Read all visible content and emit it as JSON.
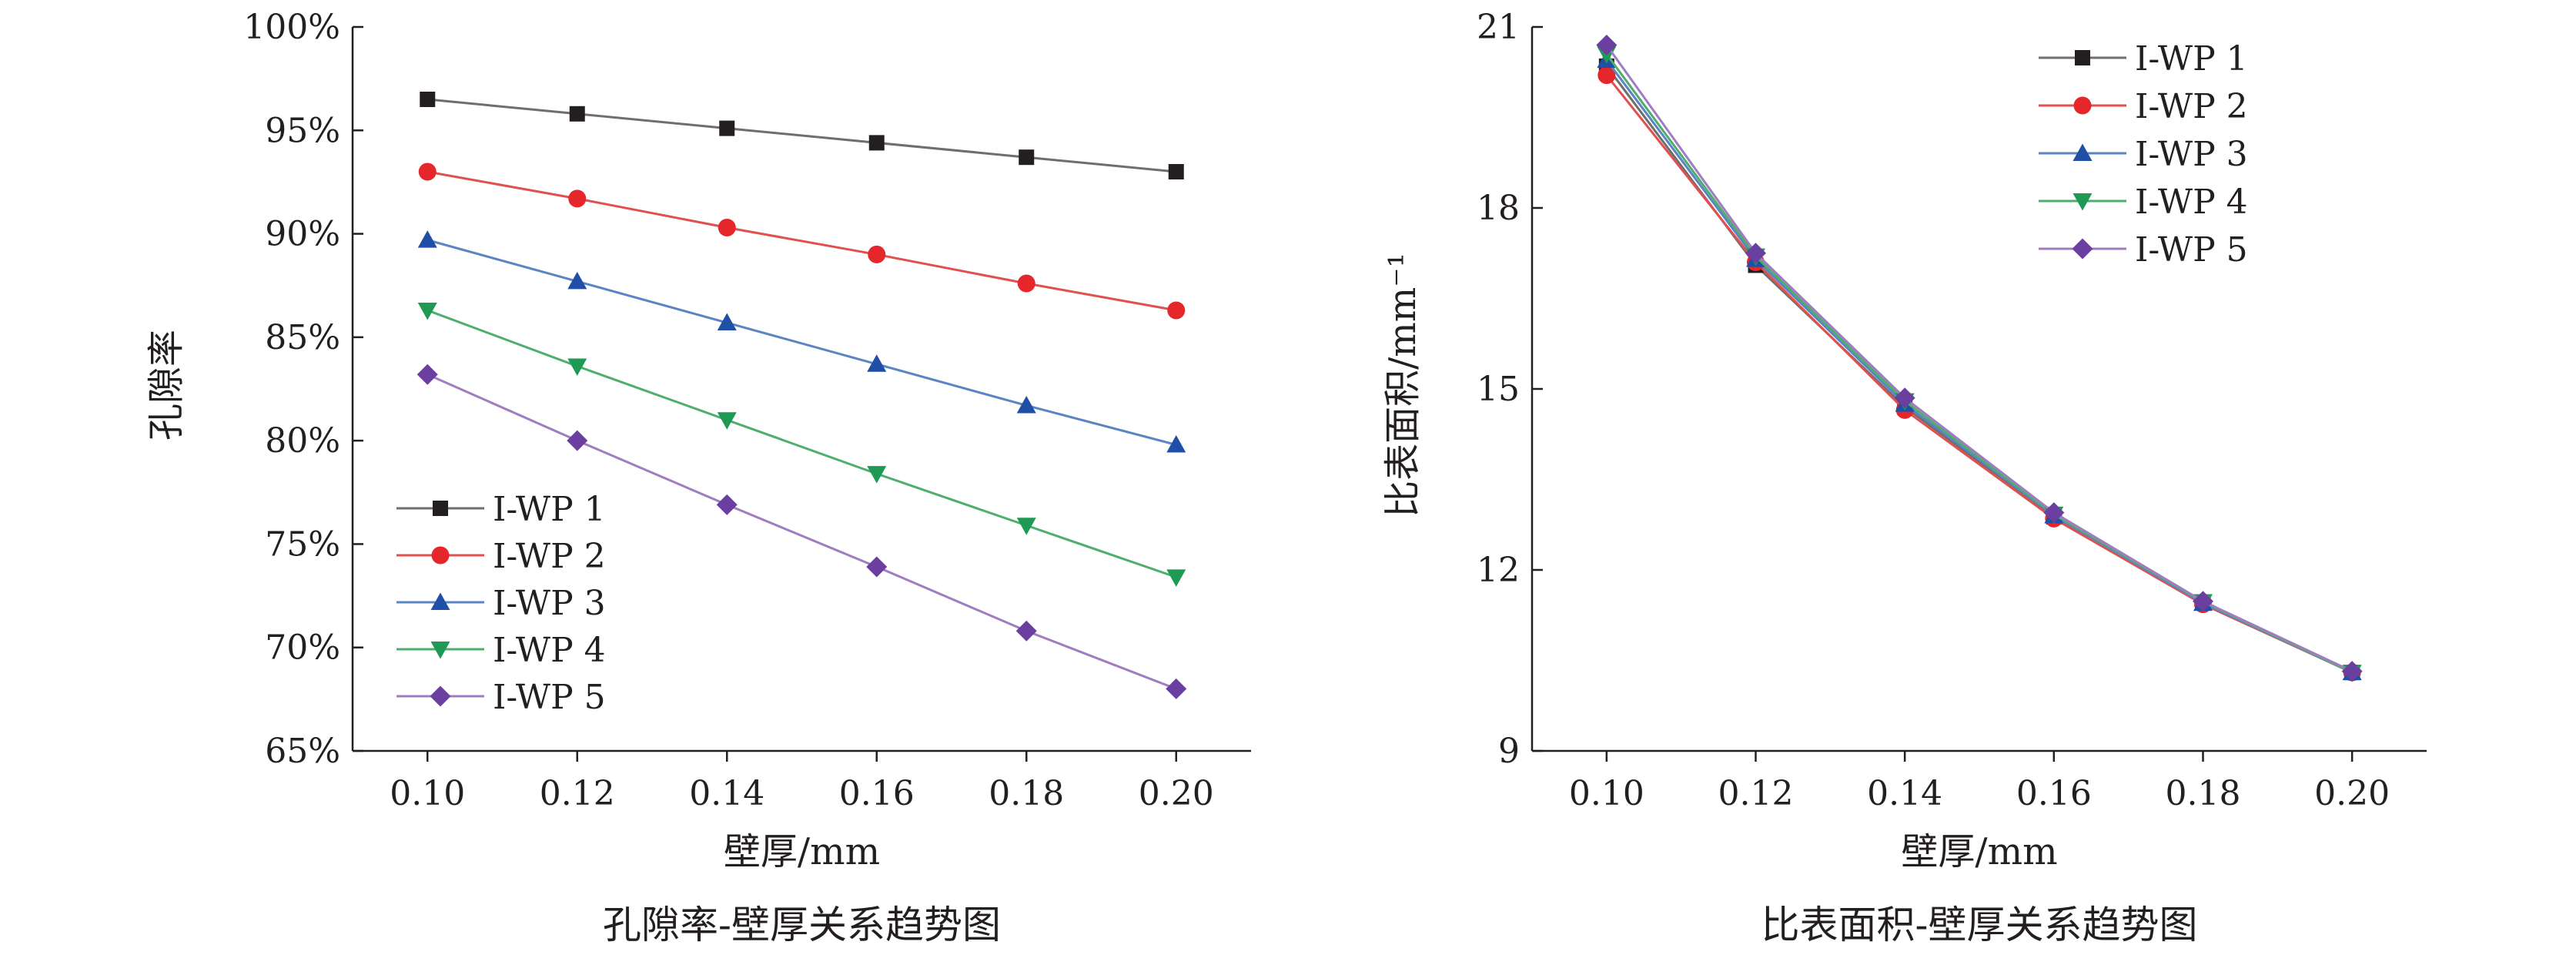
{
  "chart_data": [
    {
      "type": "line",
      "caption": "孔隙率-壁厚关系趋势图",
      "xlabel": "壁厚/mm",
      "ylabel": "孔隙率",
      "x": [
        0.1,
        0.12,
        0.14,
        0.16,
        0.18,
        0.2
      ],
      "x_ticks": [
        "0.10",
        "0.12",
        "0.14",
        "0.16",
        "0.18",
        "0.20"
      ],
      "xlim": [
        0.09,
        0.21
      ],
      "ylim": [
        65,
        100
      ],
      "y_ticks": [
        65,
        70,
        75,
        80,
        85,
        90,
        95,
        100
      ],
      "y_tick_labels": [
        "65%",
        "70%",
        "75%",
        "80%",
        "85%",
        "90%",
        "95%",
        "100%"
      ],
      "grid": false,
      "legend_position": "bottom-left",
      "series": [
        {
          "name": "I-WP 1",
          "color": "#6e6e6e",
          "marker_color": "#231f20",
          "marker": "square",
          "values": [
            96.5,
            95.8,
            95.1,
            94.4,
            93.7,
            93.0
          ]
        },
        {
          "name": "I-WP 2",
          "color": "#e0504f",
          "marker_color": "#e5262a",
          "marker": "circle",
          "values": [
            93.0,
            91.7,
            90.3,
            89.0,
            87.6,
            86.3
          ]
        },
        {
          "name": "I-WP 3",
          "color": "#5b84c4",
          "marker_color": "#1f4fa6",
          "marker": "triangle-up",
          "values": [
            89.7,
            87.7,
            85.7,
            83.7,
            81.7,
            79.8
          ]
        },
        {
          "name": "I-WP 4",
          "color": "#4fae6e",
          "marker_color": "#1f9a55",
          "marker": "triangle-down",
          "values": [
            86.3,
            83.6,
            81.0,
            78.4,
            75.9,
            73.4
          ]
        },
        {
          "name": "I-WP 5",
          "color": "#a07cc0",
          "marker_color": "#6a3fa0",
          "marker": "diamond",
          "values": [
            83.2,
            80.0,
            76.9,
            73.9,
            70.8,
            68.0
          ]
        }
      ]
    },
    {
      "type": "line",
      "caption": "比表面积-壁厚关系趋势图",
      "xlabel": "壁厚/mm",
      "ylabel": "比表面积/mm⁻¹",
      "x": [
        0.1,
        0.12,
        0.14,
        0.16,
        0.18,
        0.2
      ],
      "x_ticks": [
        "0.10",
        "0.12",
        "0.14",
        "0.16",
        "0.18",
        "0.20"
      ],
      "xlim": [
        0.09,
        0.21
      ],
      "ylim": [
        9,
        21
      ],
      "y_ticks": [
        9,
        12,
        15,
        18,
        21
      ],
      "y_tick_labels": [
        "9",
        "12",
        "15",
        "18",
        "21"
      ],
      "grid": false,
      "legend_position": "top-right",
      "series": [
        {
          "name": "I-WP 1",
          "color": "#6e6e6e",
          "marker_color": "#231f20",
          "marker": "square",
          "values": [
            20.35,
            17.05,
            14.7,
            12.88,
            11.45,
            10.3
          ]
        },
        {
          "name": "I-WP 2",
          "color": "#e0504f",
          "marker_color": "#e5262a",
          "marker": "circle",
          "values": [
            20.2,
            17.1,
            14.65,
            12.85,
            11.43,
            10.3
          ]
        },
        {
          "name": "I-WP 3",
          "color": "#5b84c4",
          "marker_color": "#1f4fa6",
          "marker": "triangle-up",
          "values": [
            20.45,
            17.15,
            14.75,
            12.9,
            11.45,
            10.3
          ]
        },
        {
          "name": "I-WP 4",
          "color": "#4fae6e",
          "marker_color": "#1f9a55",
          "marker": "triangle-down",
          "values": [
            20.55,
            17.2,
            14.8,
            12.92,
            11.47,
            10.3
          ]
        },
        {
          "name": "I-WP 5",
          "color": "#a07cc0",
          "marker_color": "#6a3fa0",
          "marker": "diamond",
          "values": [
            20.7,
            17.25,
            14.85,
            12.95,
            11.48,
            10.32
          ]
        }
      ]
    }
  ]
}
